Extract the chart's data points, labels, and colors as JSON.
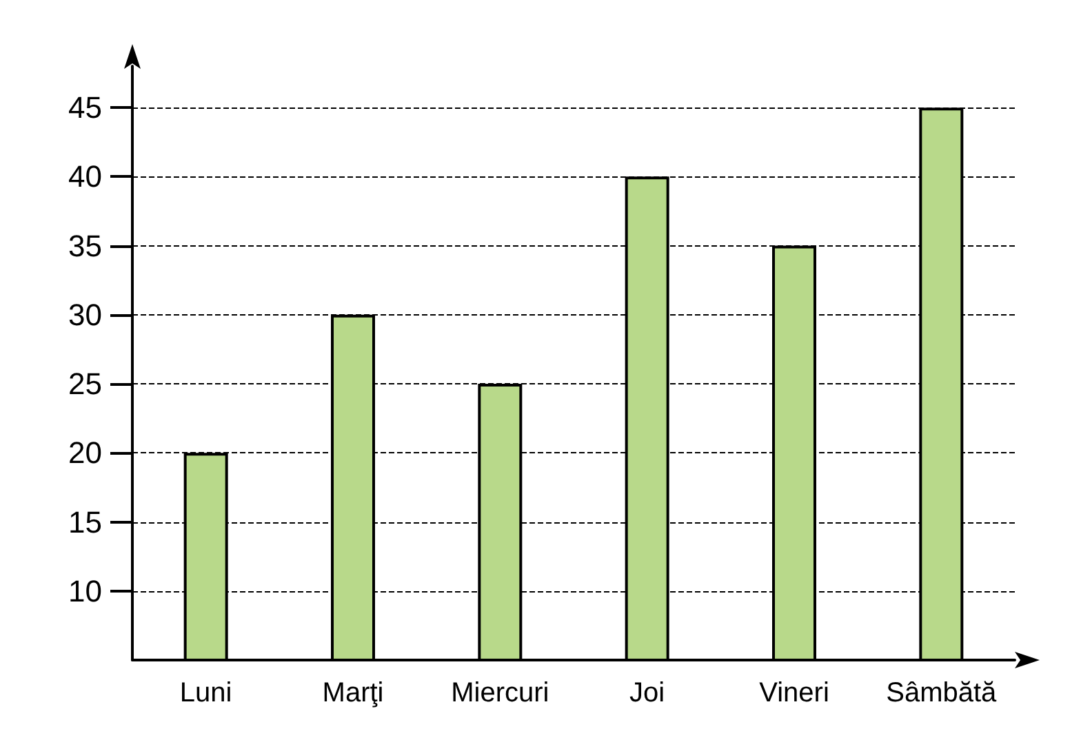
{
  "chart_data": {
    "type": "bar",
    "categories": [
      "Luni",
      "Marţi",
      "Miercuri",
      "Joi",
      "Vineri",
      "Sâmbătă"
    ],
    "values": [
      20,
      30,
      25,
      40,
      35,
      45
    ],
    "color": "#b8d98a",
    "ylim": [
      5,
      48
    ],
    "yticks": [
      10,
      15,
      20,
      25,
      30,
      35,
      40,
      45
    ],
    "grid": "y"
  }
}
